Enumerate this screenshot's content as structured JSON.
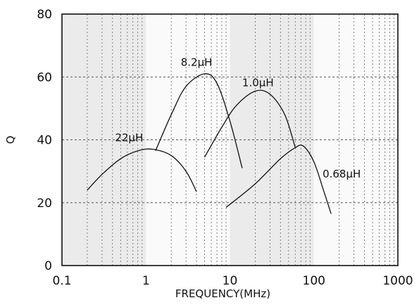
{
  "chart_data": {
    "type": "line",
    "title": "",
    "xlabel": "FREQUENCY(MHz)",
    "ylabel": "Q",
    "x_scale": "log",
    "xlim": [
      0.1,
      1000
    ],
    "ylim": [
      0,
      80
    ],
    "x_ticks": [
      0.1,
      1,
      10,
      100,
      1000
    ],
    "x_tick_labels": [
      "0.1",
      "1",
      "10",
      "100",
      "1000"
    ],
    "y_ticks": [
      0,
      20,
      40,
      60,
      80
    ],
    "y_tick_labels": [
      "0",
      "20",
      "40",
      "60",
      "80"
    ],
    "grid": true,
    "background_bands": "alternating light gray per decade",
    "series": [
      {
        "name": "22μH",
        "points": [
          [
            0.2,
            24
          ],
          [
            0.3,
            29
          ],
          [
            0.5,
            34
          ],
          [
            0.8,
            36.5
          ],
          [
            1.2,
            37
          ],
          [
            2.0,
            35
          ],
          [
            3.0,
            30
          ],
          [
            4.0,
            23.5
          ]
        ]
      },
      {
        "name": "8.2μH",
        "points": [
          [
            1.3,
            36.5
          ],
          [
            2.0,
            48
          ],
          [
            3.0,
            57
          ],
          [
            5.0,
            61
          ],
          [
            7.0,
            58
          ],
          [
            10.0,
            46
          ],
          [
            14.0,
            31
          ]
        ]
      },
      {
        "name": "1.0μH",
        "points": [
          [
            5.0,
            34.5
          ],
          [
            8.0,
            44
          ],
          [
            12.0,
            51
          ],
          [
            20.0,
            55.5
          ],
          [
            30.0,
            54.5
          ],
          [
            45.0,
            48
          ],
          [
            60.0,
            37.5
          ]
        ]
      },
      {
        "name": "0.68μH",
        "points": [
          [
            9.0,
            18.5
          ],
          [
            20.0,
            26
          ],
          [
            40.0,
            34
          ],
          [
            60.0,
            37.5
          ],
          [
            75.0,
            38
          ],
          [
            100.0,
            33
          ],
          [
            130.0,
            24
          ],
          [
            160.0,
            16.5
          ]
        ]
      }
    ]
  }
}
